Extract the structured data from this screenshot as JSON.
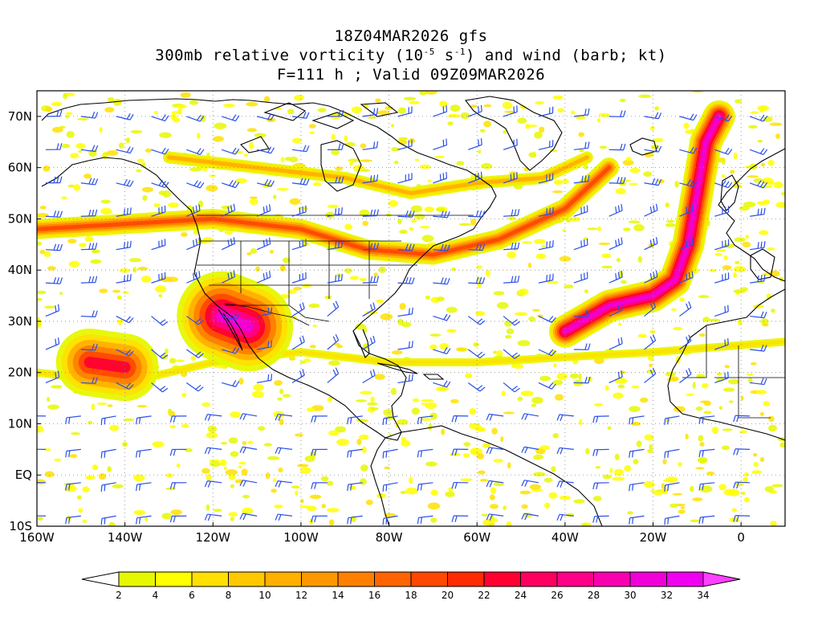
{
  "header": {
    "line1": "18Z04MAR2026 gfs",
    "line2_prefix": "300mb relative vorticity (10",
    "line2_exp1": "-5",
    "line2_mid": " s",
    "line2_exp2": "-1",
    "line2_suffix": ") and wind (barb; kt)",
    "line3": "F=111 h ; Valid 09Z09MAR2026"
  },
  "map": {
    "projection": "cylindrical",
    "lon_range": [
      -160,
      10
    ],
    "lat_range": [
      -10,
      75
    ],
    "ocean_color": "#ffffff",
    "coastline_color": "#000000",
    "barb_color": "#2a4fe8",
    "gridline_style": "dotted grey",
    "lat_labels": [
      "70N",
      "60N",
      "50N",
      "40N",
      "30N",
      "20N",
      "10N",
      "EQ",
      "10S"
    ],
    "lat_values": [
      70,
      60,
      50,
      40,
      30,
      20,
      10,
      0,
      -10
    ],
    "lon_labels": [
      "160W",
      "140W",
      "120W",
      "100W",
      "80W",
      "60W",
      "40W",
      "20W",
      "0"
    ],
    "lon_values": [
      -160,
      -140,
      -120,
      -100,
      -80,
      -60,
      -40,
      -20,
      0
    ]
  },
  "colorbar": {
    "levels": [
      "2",
      "4",
      "6",
      "8",
      "10",
      "12",
      "14",
      "16",
      "18",
      "20",
      "22",
      "24",
      "26",
      "28",
      "30",
      "32",
      "34"
    ],
    "colors": [
      "#ffffff",
      "#e6f800",
      "#ffff00",
      "#ffe000",
      "#ffc800",
      "#ffb000",
      "#ff9800",
      "#ff8000",
      "#ff6400",
      "#ff4800",
      "#ff2a00",
      "#ff0030",
      "#ff0060",
      "#ff0088",
      "#f800b0",
      "#f000d8",
      "#f000f0",
      "#ff40ff"
    ]
  },
  "features": {
    "vorticity_bands": [
      {
        "name": "jet-main",
        "lon": [
          -160,
          -140,
          -120,
          -100,
          -85,
          -70,
          -55,
          -40,
          -30
        ],
        "lat": [
          48,
          49,
          50,
          48,
          44,
          43,
          46,
          52,
          60
        ],
        "intensity": 18
      },
      {
        "name": "jet-north",
        "lon": [
          -130,
          -110,
          -90,
          -75,
          -60,
          -45,
          -35
        ],
        "lat": [
          62,
          60,
          58,
          55,
          57,
          58,
          62
        ],
        "intensity": 10
      },
      {
        "name": "trough-east",
        "lon": [
          -40,
          -30,
          -20,
          -15,
          -12,
          -10,
          -8,
          -5
        ],
        "lat": [
          28,
          33,
          35,
          38,
          45,
          55,
          65,
          70
        ],
        "intensity": 30
      },
      {
        "name": "subtropical",
        "lon": [
          -160,
          -140,
          -120,
          -100,
          -80,
          -60,
          -40,
          -20,
          10
        ],
        "lat": [
          20,
          18,
          22,
          24,
          22,
          22,
          23,
          24,
          26
        ],
        "intensity": 8
      },
      {
        "name": "cutoff-low-baja",
        "lon": [
          -118,
          -112
        ],
        "lat": [
          31,
          29
        ],
        "intensity": 30
      },
      {
        "name": "pacific-low",
        "lon": [
          -148,
          -140
        ],
        "lat": [
          22,
          21
        ],
        "intensity": 22
      }
    ]
  }
}
